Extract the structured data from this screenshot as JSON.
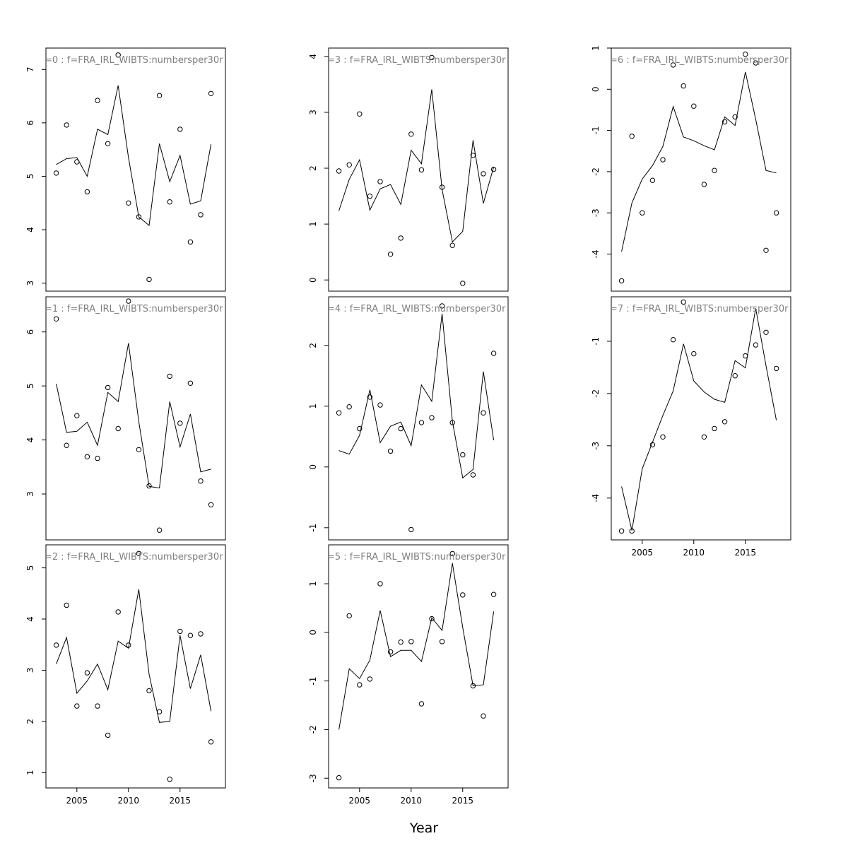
{
  "chart_data": {
    "type": "line",
    "layout": "3x3 panel grid, column-major, shared x axis",
    "xlabel": "Year",
    "xticks": [
      2005,
      2010,
      2015
    ],
    "xlim": [
      2002.0,
      2019.4
    ],
    "x": [
      2003,
      2004,
      2005,
      2006,
      2007,
      2008,
      2009,
      2010,
      2011,
      2012,
      2013,
      2014,
      2015,
      2016,
      2017,
      2018
    ],
    "line_style": "black solid line = fitted",
    "point_style": "open circles = observed",
    "panels": [
      {
        "label": "=0 : f=FRA_IRL_WIBTS:numbersper30r",
        "ylim": [
          2.85,
          7.4
        ],
        "yticks": [
          3,
          4,
          5,
          6,
          7
        ],
        "observed": [
          5.06,
          5.96,
          5.27,
          4.71,
          6.42,
          5.61,
          7.27,
          4.5,
          4.24,
          3.07,
          6.51,
          4.52,
          5.88,
          3.77,
          4.28,
          6.55
        ],
        "fitted": [
          5.22,
          5.33,
          5.35,
          5.0,
          5.88,
          5.78,
          6.7,
          5.35,
          4.24,
          4.08,
          5.61,
          4.9,
          5.39,
          4.48,
          4.54,
          5.6
        ]
      },
      {
        "label": "=1 : f=FRA_IRL_WIBTS:numbersper30r",
        "ylim": [
          2.15,
          6.65
        ],
        "yticks": [
          3,
          4,
          5,
          6
        ],
        "observed": [
          6.24,
          3.9,
          4.45,
          3.69,
          3.66,
          4.97,
          4.21,
          6.57,
          3.82,
          3.15,
          2.33,
          5.18,
          4.31,
          5.05,
          3.24,
          2.8
        ],
        "fitted": [
          5.04,
          4.14,
          4.16,
          4.33,
          3.9,
          4.88,
          4.71,
          5.79,
          4.34,
          3.14,
          3.11,
          4.71,
          3.87,
          4.48,
          3.41,
          3.46
        ]
      },
      {
        "label": "=2 : f=FRA_IRL_WIBTS:numbersper30r",
        "ylim": [
          0.7,
          5.45
        ],
        "yticks": [
          1,
          2,
          3,
          4,
          5
        ],
        "observed": [
          3.49,
          4.27,
          2.3,
          2.95,
          2.3,
          1.73,
          4.14,
          3.49,
          5.28,
          2.6,
          2.19,
          0.87,
          3.76,
          3.68,
          3.71,
          1.6
        ],
        "fitted": [
          3.12,
          3.64,
          2.55,
          2.79,
          3.12,
          2.62,
          3.57,
          3.43,
          4.58,
          2.92,
          1.98,
          2.0,
          3.68,
          2.64,
          3.3,
          2.2
        ]
      },
      {
        "label": "=3 : f=FRA_IRL_WIBTS:numbersper30r",
        "ylim": [
          -0.2,
          4.15
        ],
        "yticks": [
          0,
          1,
          2,
          3,
          4
        ],
        "observed": [
          1.95,
          2.06,
          2.97,
          1.5,
          1.76,
          0.46,
          0.75,
          2.61,
          1.97,
          3.98,
          1.66,
          0.62,
          -0.06,
          2.23,
          1.9,
          1.98
        ],
        "fitted": [
          1.24,
          1.8,
          2.15,
          1.25,
          1.63,
          1.71,
          1.35,
          2.32,
          2.08,
          3.41,
          1.62,
          0.68,
          0.87,
          2.5,
          1.37,
          2.02
        ]
      },
      {
        "label": "=4 : f=FRA_IRL_WIBTS:numbersper30r",
        "ylim": [
          -1.2,
          2.8
        ],
        "yticks": [
          -1,
          0,
          1,
          2
        ],
        "observed": [
          0.89,
          0.99,
          0.63,
          1.15,
          1.02,
          0.26,
          0.63,
          -1.03,
          0.73,
          0.81,
          2.65,
          0.73,
          0.2,
          -0.13,
          0.89,
          1.87
        ],
        "fitted": [
          0.27,
          0.21,
          0.52,
          1.27,
          0.4,
          0.67,
          0.74,
          0.35,
          1.35,
          1.08,
          2.52,
          0.75,
          -0.18,
          -0.04,
          1.57,
          0.44
        ]
      },
      {
        "label": "=5 : f=FRA_IRL_WIBTS:numbersper30r",
        "ylim": [
          -3.2,
          1.8
        ],
        "yticks": [
          -3,
          -2,
          -1,
          0,
          1
        ],
        "observed": [
          -2.99,
          0.34,
          -1.08,
          -0.96,
          1.0,
          -0.4,
          -0.2,
          -0.19,
          -1.47,
          0.28,
          -0.19,
          1.62,
          0.77,
          -1.1,
          -1.72,
          0.78
        ],
        "fitted": [
          -2.0,
          -0.75,
          -0.95,
          -0.57,
          0.45,
          -0.5,
          -0.37,
          -0.37,
          -0.6,
          0.3,
          0.04,
          1.42,
          0.1,
          -1.1,
          -1.08,
          0.43
        ]
      },
      {
        "label": "=6 : f=FRA_IRL_WIBTS:numbersper30r",
        "ylim": [
          -4.9,
          1.0
        ],
        "yticks": [
          -4,
          -3,
          -2,
          -1,
          0,
          1
        ],
        "observed": [
          -4.65,
          -1.14,
          -3.0,
          -2.21,
          -1.71,
          0.59,
          0.08,
          -0.41,
          -2.31,
          -1.97,
          -0.79,
          -0.67,
          0.85,
          0.64,
          -3.91,
          -3.0
        ],
        "fitted": [
          -3.94,
          -2.76,
          -2.18,
          -1.85,
          -1.39,
          -0.42,
          -1.16,
          -1.25,
          -1.37,
          -1.47,
          -0.67,
          -0.88,
          0.42,
          -0.73,
          -1.97,
          -2.03
        ]
      },
      {
        "label": "=7 : f=FRA_IRL_WIBTS:numbersper30r",
        "ylim": [
          -4.8,
          -0.15
        ],
        "yticks": [
          -4,
          -3,
          -2,
          -1
        ],
        "observed": [
          -4.63,
          -4.63,
          -2.98,
          -2.83,
          -0.97,
          -0.25,
          -1.24,
          -2.83,
          -2.67,
          -2.54,
          -1.66,
          -1.28,
          -1.07,
          -0.83,
          -1.52
        ],
        "observed_x": [
          2003,
          2004,
          2006,
          2007,
          2008,
          2009,
          2010,
          2011,
          2012,
          2013,
          2014,
          2015,
          2016,
          2017,
          2018
        ],
        "fitted": [
          -3.78,
          -4.62,
          -3.44,
          -2.93,
          -2.42,
          -1.95,
          -1.05,
          -1.76,
          -1.97,
          -2.11,
          -2.17,
          -1.37,
          -1.51,
          -0.37,
          -1.47,
          -2.51
        ]
      }
    ]
  }
}
